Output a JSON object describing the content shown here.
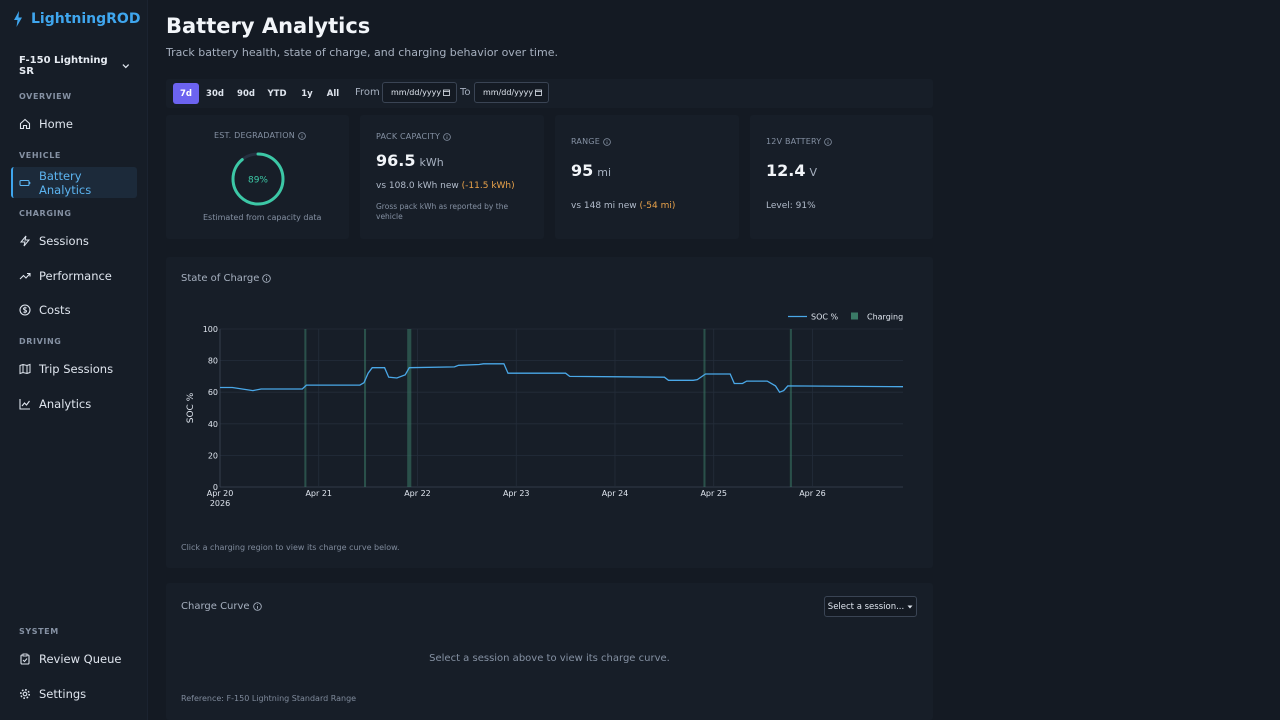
{
  "app": {
    "name": "LightningROD"
  },
  "sidebar": {
    "vehicle": "F-150 Lightning SR",
    "sections": [
      "OVERVIEW",
      "VEHICLE",
      "CHARGING",
      "DRIVING",
      "SYSTEM"
    ],
    "items": [
      {
        "label": "Home",
        "icon": "home-icon"
      },
      {
        "label": "Battery Analytics",
        "icon": "battery-icon"
      },
      {
        "label": "Sessions",
        "icon": "bolt-icon"
      },
      {
        "label": "Performance",
        "icon": "trend-up-icon"
      },
      {
        "label": "Costs",
        "icon": "dollar-icon"
      },
      {
        "label": "Trip Sessions",
        "icon": "map-icon"
      },
      {
        "label": "Analytics",
        "icon": "line-chart-icon"
      },
      {
        "label": "Review Queue",
        "icon": "clipboard-icon"
      },
      {
        "label": "Settings",
        "icon": "gear-icon"
      }
    ]
  },
  "header": {
    "title": "Battery Analytics",
    "subtitle": "Track battery health, state of charge, and charging behavior over time."
  },
  "toolbar": {
    "ranges": [
      "7d",
      "30d",
      "90d",
      "YTD",
      "1y",
      "All"
    ],
    "active_range": "7d",
    "from_label": "From",
    "to_label": "To",
    "from_placeholder": "mm/dd/yyyy",
    "to_placeholder": "mm/dd/yyyy"
  },
  "cards": {
    "degradation": {
      "label": "EST. DEGRADATION",
      "value": "89%",
      "percent": 89,
      "caption": "Estimated from capacity data"
    },
    "capacity": {
      "label": "PACK CAPACITY",
      "value": "96.5",
      "unit": "kWh",
      "compare": "vs 108.0 kWh new",
      "delta": "(-11.5 kWh)",
      "note": "Gross pack kWh as reported by the vehicle"
    },
    "range": {
      "label": "RANGE",
      "value": "95",
      "unit": "mi",
      "compare": "vs 148 mi new",
      "delta": "(-54 mi)"
    },
    "aux_battery": {
      "label": "12V BATTERY",
      "value": "12.4",
      "unit": "V",
      "level": "Level: 91%"
    }
  },
  "soc_panel": {
    "title": "State of Charge",
    "hint": "Click a charging region to view its charge curve below."
  },
  "charge_curve": {
    "title": "Charge Curve",
    "select_label": "Select a session...",
    "empty": "Select a session above to view its charge curve.",
    "reference": "Reference: F-150 Lightning Standard Range"
  },
  "colors": {
    "accent": "#3fa6ee",
    "active_range": "#6c63f0",
    "soc_line": "#4aa8e8",
    "charging": "#3a7a66",
    "gauge": "#3cc8a6"
  },
  "chart_data": {
    "type": "line",
    "title": "",
    "xlabel": "",
    "ylabel": "SOC %",
    "ylim": [
      0,
      100
    ],
    "y_ticks": [
      0,
      20,
      40,
      60,
      80,
      100
    ],
    "x_ticks": [
      "Apr 20",
      "Apr 21",
      "Apr 22",
      "Apr 23",
      "Apr 24",
      "Apr 25",
      "Apr 26"
    ],
    "x_year_label": "2026",
    "xlim": [
      "2026-04-20T00:00",
      "2026-04-26T22:00"
    ],
    "legend": [
      "SOC %",
      "Charging"
    ],
    "series": [
      {
        "name": "SOC %",
        "points": [
          [
            "2026-04-20T00:00",
            63
          ],
          [
            "2026-04-20T03:00",
            63
          ],
          [
            "2026-04-20T08:00",
            61
          ],
          [
            "2026-04-20T10:00",
            62
          ],
          [
            "2026-04-20T20:00",
            62
          ],
          [
            "2026-04-20T21:00",
            64.5
          ],
          [
            "2026-04-21T10:00",
            64.5
          ],
          [
            "2026-04-21T11:00",
            66
          ],
          [
            "2026-04-21T12:00",
            72
          ],
          [
            "2026-04-21T13:00",
            75.5
          ],
          [
            "2026-04-21T16:00",
            75.5
          ],
          [
            "2026-04-21T17:00",
            69.5
          ],
          [
            "2026-04-21T19:00",
            69
          ],
          [
            "2026-04-21T21:00",
            71
          ],
          [
            "2026-04-21T22:00",
            75.5
          ],
          [
            "2026-04-22T09:00",
            76
          ],
          [
            "2026-04-22T10:00",
            77
          ],
          [
            "2026-04-22T15:00",
            77.5
          ],
          [
            "2026-04-22T16:00",
            78
          ],
          [
            "2026-04-22T21:00",
            78
          ],
          [
            "2026-04-22T22:00",
            72
          ],
          [
            "2026-04-23T09:00",
            72
          ],
          [
            "2026-04-23T12:00",
            72
          ],
          [
            "2026-04-23T13:00",
            70
          ],
          [
            "2026-04-24T12:00",
            69.5
          ],
          [
            "2026-04-24T13:00",
            67.5
          ],
          [
            "2026-04-24T19:00",
            67.5
          ],
          [
            "2026-04-24T20:00",
            68
          ],
          [
            "2026-04-24T22:00",
            71.5
          ],
          [
            "2026-04-25T04:00",
            71.5
          ],
          [
            "2026-04-25T05:00",
            65.5
          ],
          [
            "2026-04-25T07:00",
            65.5
          ],
          [
            "2026-04-25T08:00",
            67
          ],
          [
            "2026-04-25T13:00",
            67
          ],
          [
            "2026-04-25T15:00",
            64
          ],
          [
            "2026-04-25T16:00",
            60
          ],
          [
            "2026-04-25T17:00",
            61
          ],
          [
            "2026-04-25T18:00",
            64
          ],
          [
            "2026-04-26T22:00",
            63.5
          ]
        ]
      }
    ],
    "charging_regions": [
      [
        "2026-04-20T20:30",
        "2026-04-20T21:00"
      ],
      [
        "2026-04-21T11:00",
        "2026-04-21T11:30"
      ],
      [
        "2026-04-21T21:30",
        "2026-04-21T22:30"
      ],
      [
        "2026-04-24T21:30",
        "2026-04-24T22:00"
      ],
      [
        "2026-04-25T18:30",
        "2026-04-25T19:00"
      ]
    ]
  }
}
